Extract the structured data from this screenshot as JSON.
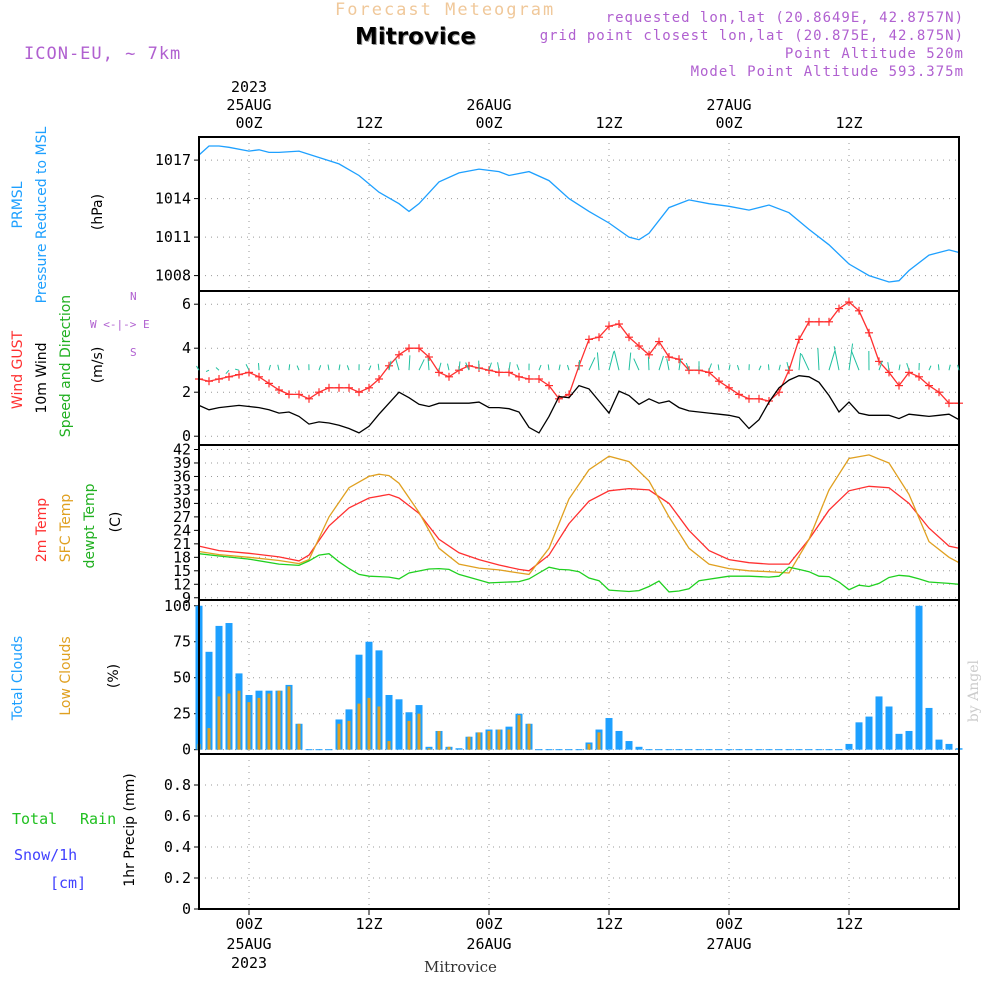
{
  "header": {
    "forecast_title": "Forecast Meteogram",
    "station": "Mitrovice",
    "model": "ICON-EU, ~ 7km",
    "requested": "requested lon,lat (20.8649E, 42.8757N)",
    "grid_point": "grid point closest lon,lat (20.875E, 42.875N)",
    "point_altitude": "Point Altitude 520m",
    "model_point_altitude": "Model Point Altitude 593.375m",
    "credit": "by Angel",
    "footer_station": "Mitrovice"
  },
  "time_axis": {
    "top_year": "2023",
    "bottom_year": "2023",
    "ticks": [
      {
        "hour": 0,
        "label": "00Z",
        "date": "25AUG"
      },
      {
        "hour": 12,
        "label": "12Z",
        "date": ""
      },
      {
        "hour": 24,
        "label": "00Z",
        "date": "26AUG"
      },
      {
        "hour": 36,
        "label": "12Z",
        "date": ""
      },
      {
        "hour": 48,
        "label": "00Z",
        "date": "27AUG"
      },
      {
        "hour": 60,
        "label": "12Z",
        "date": ""
      }
    ],
    "start_hour": -5,
    "end_hour": 71
  },
  "labels": {
    "pressure": [
      "PRMSL",
      "Pressure Reduced to MSL",
      "(hPa)"
    ],
    "wind": [
      "Wind GUST",
      "10m Wind",
      "Speed and Direction",
      "(m/s)"
    ],
    "compass": {
      "n": "N",
      "s": "S",
      "w": "W",
      "e": "E",
      "row": "W <-|-> E",
      "col_top": "N",
      "col_bot": "S"
    },
    "temp": [
      "2m Temp",
      "SFC Temp",
      "dewpt Temp",
      "(C)"
    ],
    "clouds": [
      "Total Clouds",
      "Low Clouds",
      "(%)"
    ],
    "precip": [
      "Total",
      "Rain",
      "Snow/1h",
      "[cm]",
      "1hr Precip (mm)"
    ]
  },
  "colors": {
    "pressure": "#1ea0ff",
    "gust": "#ff3030",
    "wind": "#000000",
    "t2m": "#ff3030",
    "sfc": "#e0a020",
    "dewpt": "#20d020",
    "total_clouds": "#1ea0ff",
    "low_clouds": "#e0a020",
    "rain": "#20d020",
    "snow": "#4040ff",
    "meta": "#b060d0"
  },
  "chart_data": [
    {
      "type": "line",
      "id": "pressure",
      "ylabel": "(hPa)",
      "ylim": [
        1006.8,
        1018.8
      ],
      "yticks": [
        1008,
        1011,
        1014,
        1017
      ],
      "series": [
        {
          "name": "PRMSL",
          "x": [
            -5,
            -4,
            -3,
            -2,
            0,
            1,
            2,
            3,
            5,
            7,
            9,
            11,
            13,
            15,
            16,
            17,
            19,
            21,
            23,
            25,
            26,
            28,
            30,
            32,
            34,
            36,
            38,
            39,
            40,
            42,
            44,
            46,
            48,
            50,
            52,
            54,
            56,
            58,
            60,
            62,
            64,
            65,
            66,
            68,
            70,
            71
          ],
          "y": [
            1017.4,
            1018.1,
            1018.1,
            1018.0,
            1017.7,
            1017.8,
            1017.6,
            1017.6,
            1017.7,
            1017.2,
            1016.7,
            1015.8,
            1014.5,
            1013.6,
            1013.0,
            1013.6,
            1015.3,
            1016.0,
            1016.3,
            1016.1,
            1015.8,
            1016.1,
            1015.4,
            1014.0,
            1013.0,
            1012.1,
            1011.0,
            1010.8,
            1011.3,
            1013.3,
            1013.9,
            1013.6,
            1013.4,
            1013.1,
            1013.5,
            1012.9,
            1011.6,
            1010.4,
            1008.9,
            1008.0,
            1007.5,
            1007.6,
            1008.4,
            1009.6,
            1010.0,
            1009.8
          ]
        }
      ]
    },
    {
      "type": "line",
      "id": "wind",
      "ylabel": "(m/s)",
      "ylim": [
        -0.4,
        6.6
      ],
      "yticks": [
        0,
        2,
        4,
        6
      ],
      "series": [
        {
          "name": "Wind GUST",
          "x": [
            -5,
            -4,
            -3,
            -2,
            -1,
            0,
            1,
            2,
            3,
            4,
            5,
            6,
            7,
            8,
            9,
            10,
            11,
            12,
            13,
            14,
            15,
            16,
            17,
            18,
            19,
            20,
            21,
            22,
            23,
            24,
            25,
            26,
            27,
            28,
            29,
            30,
            31,
            32,
            33,
            34,
            35,
            36,
            37,
            38,
            39,
            40,
            41,
            42,
            43,
            44,
            45,
            46,
            47,
            48,
            49,
            50,
            51,
            52,
            53,
            54,
            55,
            56,
            57,
            58,
            59,
            60,
            61,
            62,
            63,
            64,
            65,
            66,
            67,
            68,
            69,
            70,
            71
          ],
          "y": [
            2.6,
            2.5,
            2.6,
            2.7,
            2.8,
            2.9,
            2.7,
            2.4,
            2.1,
            1.9,
            1.9,
            1.7,
            2.0,
            2.2,
            2.2,
            2.2,
            2.0,
            2.2,
            2.6,
            3.2,
            3.7,
            4.0,
            4.0,
            3.6,
            2.9,
            2.7,
            3.0,
            3.2,
            3.1,
            3.0,
            2.9,
            2.9,
            2.7,
            2.6,
            2.6,
            2.3,
            1.7,
            1.9,
            3.2,
            4.4,
            4.5,
            5.0,
            5.1,
            4.5,
            4.1,
            3.7,
            4.3,
            3.6,
            3.5,
            3.0,
            3.0,
            2.9,
            2.5,
            2.2,
            1.9,
            1.7,
            1.7,
            1.6,
            2.0,
            3.0,
            4.4,
            5.2,
            5.2,
            5.2,
            5.8,
            6.1,
            5.7,
            4.7,
            3.4,
            2.9,
            2.3,
            2.9,
            2.7,
            2.3,
            2.0,
            1.5,
            1.5
          ]
        },
        {
          "name": "10m Wind",
          "x": [
            -5,
            -4,
            -3,
            -2,
            -1,
            0,
            1,
            2,
            3,
            4,
            5,
            6,
            7,
            8,
            9,
            10,
            11,
            12,
            13,
            14,
            15,
            16,
            17,
            18,
            19,
            20,
            21,
            22,
            23,
            24,
            25,
            26,
            27,
            28,
            29,
            30,
            31,
            32,
            33,
            34,
            35,
            36,
            37,
            38,
            39,
            40,
            41,
            42,
            43,
            44,
            45,
            46,
            47,
            48,
            49,
            50,
            51,
            52,
            53,
            54,
            55,
            56,
            57,
            58,
            59,
            60,
            61,
            62,
            63,
            64,
            65,
            66,
            67,
            68,
            69,
            70,
            71
          ],
          "y": [
            1.4,
            1.2,
            1.3,
            1.35,
            1.4,
            1.35,
            1.3,
            1.2,
            1.05,
            1.1,
            0.9,
            0.55,
            0.65,
            0.6,
            0.5,
            0.35,
            0.15,
            0.45,
            1.0,
            1.5,
            2.0,
            1.75,
            1.45,
            1.35,
            1.5,
            1.5,
            1.5,
            1.5,
            1.55,
            1.3,
            1.3,
            1.25,
            1.1,
            0.4,
            0.15,
            0.9,
            1.8,
            1.75,
            2.3,
            2.15,
            1.6,
            1.05,
            2.05,
            1.85,
            1.45,
            1.7,
            1.5,
            1.6,
            1.3,
            1.15,
            1.1,
            1.05,
            1.0,
            0.95,
            0.85,
            0.35,
            0.75,
            1.55,
            2.2,
            2.55,
            2.75,
            2.7,
            2.45,
            1.85,
            1.1,
            1.55,
            1.05,
            0.95,
            0.95,
            0.95,
            0.8,
            1.0,
            0.95,
            0.9,
            0.95,
            1.0,
            0.75
          ]
        }
      ]
    },
    {
      "type": "line",
      "id": "temperature",
      "ylabel": "(C)",
      "ylim": [
        8.5,
        43.0
      ],
      "yticks": [
        9,
        12,
        15,
        18,
        21,
        24,
        27,
        30,
        33,
        36,
        39,
        42
      ],
      "series": [
        {
          "name": "2m Temp",
          "x": [
            -5,
            -3,
            0,
            3,
            5,
            6,
            8,
            10,
            12,
            14,
            15,
            17,
            19,
            21,
            23,
            25,
            27,
            28,
            30,
            32,
            34,
            36,
            38,
            40,
            42,
            44,
            46,
            48,
            50,
            52,
            54,
            56,
            58,
            60,
            62,
            64,
            66,
            68,
            70,
            71
          ],
          "y": [
            20.5,
            19.5,
            18.9,
            18.1,
            17.2,
            18.5,
            25.0,
            29.0,
            31.2,
            32.0,
            31.2,
            27.8,
            22.0,
            19.0,
            17.5,
            16.3,
            15.3,
            15.0,
            18.5,
            25.5,
            30.5,
            32.8,
            33.3,
            33.0,
            30.0,
            24.0,
            19.5,
            17.5,
            16.8,
            16.5,
            16.5,
            22.0,
            28.5,
            32.8,
            33.8,
            33.5,
            30.0,
            24.5,
            20.5,
            20.0
          ]
        },
        {
          "name": "SFC Temp",
          "x": [
            -5,
            -3,
            0,
            3,
            5,
            6,
            8,
            10,
            12,
            13,
            14,
            15,
            17,
            19,
            21,
            23,
            25,
            27,
            28,
            30,
            32,
            34,
            36,
            38,
            40,
            42,
            44,
            46,
            48,
            50,
            52,
            54,
            56,
            58,
            60,
            62,
            64,
            66,
            68,
            70,
            71
          ],
          "y": [
            19.3,
            18.6,
            18.0,
            17.3,
            16.6,
            17.5,
            27.0,
            33.5,
            36.0,
            36.5,
            36.2,
            34.5,
            28.0,
            20.0,
            16.5,
            15.6,
            15.2,
            14.5,
            14.2,
            20.0,
            31.0,
            37.5,
            40.5,
            39.3,
            35.0,
            27.0,
            20.0,
            16.5,
            15.5,
            15.0,
            14.8,
            14.5,
            22.0,
            33.0,
            40.0,
            40.8,
            39.0,
            32.0,
            21.5,
            18.0,
            16.8
          ]
        },
        {
          "name": "dewpt Temp",
          "x": [
            -5,
            -3,
            0,
            3,
            5,
            6,
            7,
            8,
            9,
            10,
            11,
            12,
            14,
            15,
            16,
            18,
            19,
            20,
            21,
            24,
            27,
            28,
            29,
            30,
            31,
            32,
            33,
            34,
            35,
            36,
            38,
            39,
            40,
            41,
            42,
            43,
            44,
            45,
            48,
            50,
            52,
            53,
            54,
            55,
            56,
            57,
            58,
            59,
            60,
            61,
            62,
            63,
            64,
            65,
            66,
            67,
            68,
            70,
            71
          ],
          "y": [
            18.8,
            18.3,
            17.6,
            16.5,
            16.2,
            17.2,
            18.5,
            18.8,
            17.0,
            15.5,
            14.2,
            13.8,
            13.6,
            13.2,
            14.5,
            15.4,
            15.5,
            15.3,
            14.2,
            12.3,
            12.6,
            13.2,
            14.5,
            15.8,
            15.3,
            15.2,
            14.8,
            13.4,
            12.8,
            10.7,
            10.4,
            10.6,
            11.5,
            12.7,
            10.3,
            10.5,
            11.0,
            12.8,
            13.8,
            13.8,
            13.6,
            13.8,
            15.8,
            15.3,
            14.8,
            13.8,
            13.7,
            12.5,
            10.8,
            11.8,
            11.5,
            12.2,
            13.5,
            14.0,
            13.8,
            13.2,
            12.5,
            12.2,
            12.0
          ]
        }
      ]
    },
    {
      "type": "bar",
      "id": "clouds",
      "ylabel": "(%)",
      "ylim": [
        -3,
        104
      ],
      "yticks": [
        0,
        25,
        50,
        75,
        100
      ],
      "x": [
        -5,
        -4,
        -3,
        -2,
        -1,
        0,
        1,
        2,
        3,
        4,
        5,
        6,
        7,
        8,
        9,
        10,
        11,
        12,
        13,
        14,
        15,
        16,
        17,
        18,
        19,
        20,
        21,
        22,
        23,
        24,
        25,
        26,
        27,
        28,
        29,
        30,
        31,
        32,
        33,
        34,
        35,
        36,
        37,
        38,
        39,
        40,
        41,
        42,
        43,
        44,
        45,
        46,
        47,
        48,
        49,
        50,
        51,
        52,
        53,
        54,
        55,
        56,
        57,
        58,
        59,
        60,
        61,
        62,
        63,
        64,
        65,
        66,
        67,
        68,
        69,
        70,
        71
      ],
      "series": [
        {
          "name": "Total Clouds",
          "values": [
            100,
            68,
            86,
            88,
            53,
            38,
            41,
            41,
            41,
            45,
            18,
            0,
            0,
            0,
            21,
            28,
            66,
            75,
            69,
            38,
            35,
            26,
            31,
            2,
            13,
            2,
            1,
            9,
            12,
            14,
            14,
            16,
            25,
            18,
            0,
            0,
            0,
            0,
            0,
            5,
            14,
            22,
            13,
            6,
            2,
            0,
            0,
            0,
            0,
            0,
            0,
            0,
            0,
            0,
            0,
            0,
            0,
            0,
            0,
            0,
            0,
            0,
            0,
            0,
            0,
            4,
            19,
            23,
            37,
            30,
            11,
            13,
            100,
            29,
            7,
            4,
            1
          ]
        },
        {
          "name": "Low Clouds",
          "values": [
            4,
            15,
            37,
            39,
            41,
            33,
            36,
            39,
            41,
            44,
            18,
            0,
            0,
            0,
            18,
            20,
            32,
            36,
            30,
            6,
            0,
            20,
            25,
            1,
            13,
            2,
            0,
            9,
            12,
            13,
            14,
            14,
            24,
            18,
            0,
            0,
            0,
            0,
            0,
            4,
            12,
            0,
            0,
            0,
            0,
            0,
            0,
            0,
            0,
            0,
            0,
            0,
            0,
            0,
            0,
            0,
            0,
            0,
            0,
            0,
            0,
            0,
            0,
            0,
            0,
            0,
            0,
            0,
            0,
            0,
            0,
            0,
            0,
            0,
            0,
            0,
            0
          ]
        }
      ]
    },
    {
      "type": "bar",
      "id": "precip",
      "ylabel": "1hr Precip (mm)",
      "ylim": [
        0,
        1.0
      ],
      "yticks": [
        0,
        0.2,
        0.4,
        0.6,
        0.8
      ],
      "series": [
        {
          "name": "Total Rain",
          "values": []
        },
        {
          "name": "Snow/1h",
          "values": []
        }
      ]
    }
  ]
}
